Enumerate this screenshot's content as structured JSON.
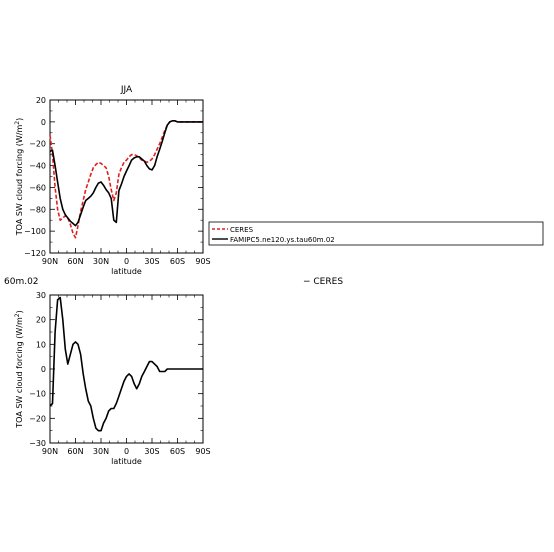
{
  "chart_data": [
    {
      "type": "line",
      "title": "JJA",
      "xlabel": "latitude",
      "ylabel_main": "TOA SW cloud forcing (W/m",
      "ylabel_sup": "2",
      "ylabel_close": ")",
      "xlim": [
        90,
        -90
      ],
      "ylim": [
        -120,
        20
      ],
      "xticks": [
        90,
        60,
        30,
        0,
        -30,
        -60,
        -90
      ],
      "xtick_labels": [
        "90N",
        "60N",
        "30N",
        "0",
        "30S",
        "60S",
        "90S"
      ],
      "yticks": [
        20,
        0,
        -20,
        -40,
        -60,
        -80,
        -100,
        -120
      ],
      "ytick_labels": [
        "20",
        "0",
        "−20",
        "−40",
        "−60",
        "−80",
        "−100",
        "−120"
      ],
      "grid": false,
      "legend": "right",
      "series": [
        {
          "name": "CERES",
          "color": "#e02020",
          "dash": true,
          "x": [
            90,
            87,
            84,
            81,
            78,
            75,
            72,
            69,
            66,
            63,
            60,
            57,
            54,
            51,
            48,
            45,
            42,
            39,
            36,
            33,
            30,
            27,
            24,
            21,
            18,
            15,
            12,
            9,
            6,
            3,
            0,
            -3,
            -6,
            -9,
            -12,
            -15,
            -18,
            -21,
            -24,
            -27,
            -30,
            -33,
            -36,
            -39,
            -42,
            -45,
            -48,
            -51,
            -54,
            -57,
            -60,
            -63,
            -66,
            -69,
            -72,
            -75,
            -78,
            -81,
            -84,
            -87,
            -90
          ],
          "values": [
            -12,
            -30,
            -60,
            -80,
            -90,
            -88,
            -86,
            -88,
            -94,
            -102,
            -106,
            -95,
            -82,
            -72,
            -62,
            -55,
            -48,
            -42,
            -39,
            -37,
            -38,
            -40,
            -42,
            -50,
            -62,
            -72,
            -65,
            -48,
            -42,
            -37,
            -35,
            -32,
            -30,
            -30,
            -31,
            -33,
            -35,
            -36,
            -37,
            -36,
            -34,
            -30,
            -25,
            -20,
            -14,
            -8,
            -3,
            0,
            1,
            1,
            0,
            0,
            0,
            0,
            0,
            0,
            0,
            0,
            0,
            0,
            0
          ]
        },
        {
          "name": "FAMIPC5.ne120.ys.tau60m.02",
          "color": "#000000",
          "dash": false,
          "x": [
            90,
            87,
            84,
            81,
            78,
            75,
            72,
            69,
            66,
            63,
            60,
            57,
            54,
            51,
            48,
            45,
            42,
            39,
            36,
            33,
            30,
            27,
            24,
            21,
            18,
            15,
            12,
            9,
            6,
            3,
            0,
            -3,
            -6,
            -9,
            -12,
            -15,
            -18,
            -21,
            -24,
            -27,
            -30,
            -33,
            -36,
            -39,
            -42,
            -45,
            -48,
            -51,
            -54,
            -57,
            -60,
            -63,
            -66,
            -69,
            -72,
            -75,
            -78,
            -81,
            -84,
            -87,
            -90
          ],
          "values": [
            -27,
            -26,
            -40,
            -55,
            -70,
            -80,
            -85,
            -88,
            -91,
            -93,
            -95,
            -92,
            -85,
            -78,
            -72,
            -70,
            -68,
            -65,
            -60,
            -56,
            -55,
            -58,
            -62,
            -65,
            -70,
            -90,
            -92,
            -63,
            -57,
            -50,
            -45,
            -40,
            -35,
            -33,
            -32,
            -32,
            -34,
            -36,
            -40,
            -43,
            -44,
            -40,
            -32,
            -25,
            -18,
            -10,
            -3,
            0,
            1,
            1,
            0,
            0,
            0,
            0,
            0,
            0,
            0,
            0,
            0,
            0,
            0
          ]
        }
      ]
    },
    {
      "type": "line",
      "title": "",
      "title_partial": "60m.02",
      "legend_partial": "− CERES",
      "xlabel": "latitude",
      "ylabel_main": "TOA SW cloud forcing (W/m",
      "ylabel_sup": "2",
      "ylabel_close": ")",
      "xlim": [
        90,
        -90
      ],
      "ylim": [
        -30,
        30
      ],
      "xticks": [
        90,
        60,
        30,
        0,
        -30,
        -60,
        -90
      ],
      "xtick_labels": [
        "90N",
        "60N",
        "30N",
        "0",
        "30S",
        "60S",
        "90S"
      ],
      "yticks": [
        30,
        20,
        10,
        0,
        -10,
        -20,
        -30
      ],
      "ytick_labels": [
        "30",
        "20",
        "10",
        "0",
        "−10",
        "−20",
        "−30"
      ],
      "grid": false,
      "series": [
        {
          "name": "",
          "color": "#000000",
          "dash": false,
          "x": [
            90,
            87,
            84,
            81,
            78,
            75,
            72,
            69,
            66,
            63,
            60,
            57,
            54,
            51,
            48,
            45,
            42,
            39,
            36,
            33,
            30,
            27,
            24,
            21,
            18,
            15,
            12,
            9,
            6,
            3,
            0,
            -3,
            -6,
            -9,
            -12,
            -15,
            -18,
            -21,
            -24,
            -27,
            -30,
            -33,
            -36,
            -39,
            -42,
            -45,
            -48,
            -51,
            -54,
            -57,
            -60,
            -63,
            -66,
            -69,
            -72,
            -75,
            -78,
            -81,
            -84,
            -87,
            -90
          ],
          "values": [
            -15,
            -14,
            15,
            28,
            29,
            20,
            8,
            2,
            6,
            10,
            11,
            10,
            6,
            -2,
            -8,
            -13,
            -15,
            -20,
            -24,
            -25,
            -25,
            -22,
            -20,
            -17,
            -16,
            -16,
            -14,
            -11,
            -8,
            -5,
            -3,
            -2,
            -3,
            -6,
            -8,
            -6,
            -3,
            -1,
            1,
            3,
            3,
            2,
            1,
            -1,
            -1,
            -1,
            0,
            0,
            0,
            0,
            0,
            0,
            0,
            0,
            0,
            0,
            0,
            0,
            0,
            0,
            0
          ]
        }
      ]
    }
  ]
}
